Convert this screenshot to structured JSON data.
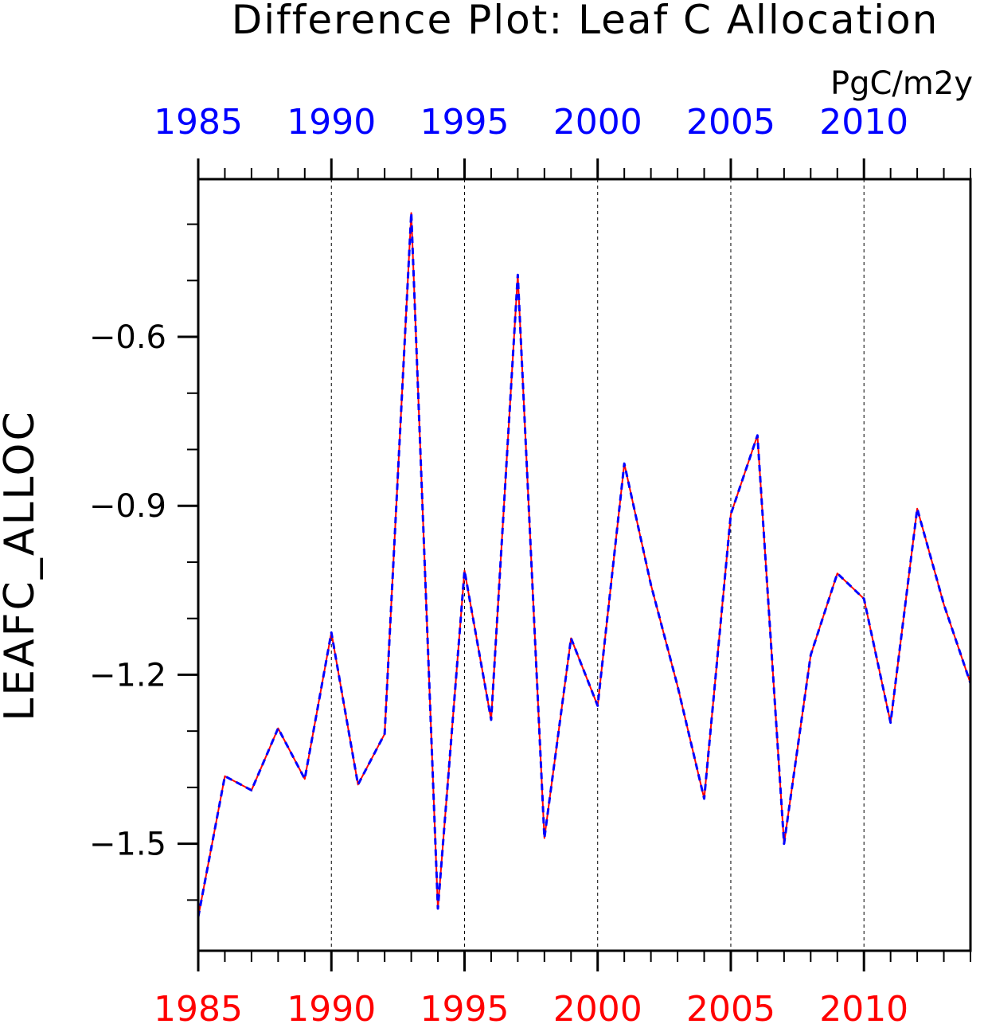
{
  "chart_data": {
    "type": "line",
    "title": "Difference Plot: Leaf C Allocation",
    "units": "PgC/m2y",
    "ylabel": "LEAFC_ALLOC",
    "xlabel": "",
    "x": [
      1985,
      1986,
      1987,
      1988,
      1989,
      1990,
      1991,
      1992,
      1993,
      1994,
      1995,
      1996,
      1997,
      1998,
      1999,
      2000,
      2001,
      2002,
      2003,
      2004,
      2005,
      2006,
      2007,
      2008,
      2009,
      2010,
      2011,
      2012,
      2013,
      2014
    ],
    "series": [
      {
        "color": "#ff0000",
        "style": "solid",
        "values": [
          -1.63,
          -1.38,
          -1.405,
          -1.295,
          -1.385,
          -1.125,
          -1.395,
          -1.305,
          -0.38,
          -1.615,
          -1.015,
          -1.28,
          -0.49,
          -1.49,
          -1.135,
          -1.255,
          -0.825,
          -1.04,
          -1.22,
          -1.42,
          -0.915,
          -0.775,
          -1.5,
          -1.165,
          -1.02,
          -1.065,
          -1.285,
          -0.905,
          -1.075,
          -1.215
        ]
      },
      {
        "color": "#0000ff",
        "style": "dashed",
        "values": [
          -1.63,
          -1.38,
          -1.405,
          -1.295,
          -1.385,
          -1.125,
          -1.395,
          -1.305,
          -0.38,
          -1.615,
          -1.015,
          -1.28,
          -0.49,
          -1.49,
          -1.135,
          -1.255,
          -0.825,
          -1.04,
          -1.22,
          -1.42,
          -0.915,
          -0.775,
          -1.5,
          -1.165,
          -1.02,
          -1.065,
          -1.285,
          -0.905,
          -1.075,
          -1.215
        ]
      }
    ],
    "xlim": [
      1985,
      2014
    ],
    "ylim": [
      -1.69,
      -0.32
    ],
    "yticks": [
      "-0.6",
      "-0.9",
      "-1.2",
      "-1.5"
    ],
    "ytick_values": [
      -0.6,
      -0.9,
      -1.2,
      -1.5
    ],
    "xticks_top": [
      "1985",
      "1990",
      "1995",
      "2000",
      "2005",
      "2010"
    ],
    "xticks_bottom": [
      "1985",
      "1990",
      "1995",
      "2000",
      "2005",
      "2010"
    ],
    "xtick_values": [
      1985,
      1990,
      1995,
      2000,
      2005,
      2010
    ],
    "top_axis_color": "#0000ff",
    "bottom_axis_color": "#ff0000",
    "grid": "vertical dashed at major x ticks"
  }
}
